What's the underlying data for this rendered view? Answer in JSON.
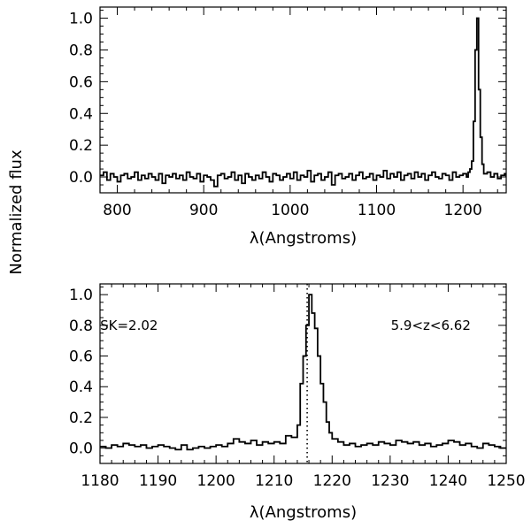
{
  "figure": {
    "ylabel": "Normalized flux"
  },
  "chart_data": [
    {
      "type": "line",
      "step": true,
      "xlabel": "λ(Angstroms)",
      "ylabel": "Normalized flux",
      "xlim": [
        780,
        1250
      ],
      "ylim": [
        -0.1,
        1.07
      ],
      "xticks": [
        800,
        900,
        1000,
        1100,
        1200
      ],
      "yticks": [
        0.0,
        0.2,
        0.4,
        0.6,
        0.8,
        1.0
      ],
      "ytick_labels": [
        "0.0",
        "0.2",
        "0.4",
        "0.6",
        "0.8",
        "1.0"
      ],
      "series": [
        {
          "x": [
            780,
            784,
            788,
            792,
            796,
            800,
            804,
            808,
            812,
            816,
            820,
            824,
            828,
            832,
            836,
            840,
            844,
            848,
            852,
            856,
            860,
            864,
            868,
            872,
            876,
            880,
            884,
            888,
            892,
            896,
            900,
            904,
            908,
            912,
            916,
            920,
            924,
            928,
            932,
            936,
            940,
            944,
            948,
            952,
            956,
            960,
            964,
            968,
            972,
            976,
            980,
            984,
            988,
            992,
            996,
            1000,
            1004,
            1008,
            1012,
            1016,
            1020,
            1024,
            1028,
            1032,
            1036,
            1040,
            1044,
            1048,
            1052,
            1056,
            1060,
            1064,
            1068,
            1072,
            1076,
            1080,
            1084,
            1088,
            1092,
            1096,
            1100,
            1104,
            1108,
            1112,
            1116,
            1120,
            1124,
            1128,
            1132,
            1136,
            1140,
            1144,
            1148,
            1152,
            1156,
            1160,
            1164,
            1168,
            1172,
            1176,
            1180,
            1184,
            1188,
            1192,
            1196,
            1200,
            1204,
            1206,
            1208,
            1210,
            1212,
            1214,
            1216,
            1218,
            1220,
            1222,
            1224,
            1228,
            1232,
            1236,
            1240,
            1244,
            1248,
            1250
          ],
          "y": [
            0.01,
            0.03,
            -0.02,
            0.02,
            0.0,
            -0.03,
            0.01,
            0.02,
            -0.01,
            0.0,
            0.03,
            -0.02,
            0.01,
            -0.01,
            0.02,
            0.0,
            -0.02,
            0.02,
            -0.04,
            0.01,
            0.0,
            0.02,
            -0.01,
            0.01,
            -0.02,
            0.03,
            0.0,
            -0.01,
            0.02,
            -0.03,
            0.01,
            0.0,
            -0.02,
            -0.06,
            0.01,
            0.02,
            -0.01,
            0.0,
            0.03,
            -0.02,
            0.01,
            -0.04,
            0.02,
            0.0,
            -0.02,
            0.01,
            -0.01,
            0.03,
            0.0,
            -0.03,
            0.02,
            0.01,
            -0.02,
            0.0,
            0.02,
            -0.01,
            0.03,
            -0.02,
            0.01,
            0.0,
            0.04,
            -0.03,
            0.01,
            0.02,
            -0.02,
            0.0,
            0.03,
            -0.05,
            0.01,
            0.02,
            -0.01,
            0.0,
            0.02,
            -0.02,
            0.01,
            0.03,
            -0.01,
            0.0,
            0.02,
            -0.02,
            0.01,
            0.0,
            0.04,
            -0.01,
            0.02,
            0.0,
            0.03,
            -0.02,
            0.01,
            0.02,
            -0.01,
            0.03,
            0.0,
            0.02,
            -0.02,
            0.01,
            0.03,
            0.0,
            -0.01,
            0.02,
            0.01,
            -0.02,
            0.03,
            0.0,
            0.01,
            0.02,
            0.0,
            0.03,
            0.05,
            0.1,
            0.35,
            0.8,
            1.0,
            0.55,
            0.25,
            0.08,
            0.02,
            0.03,
            0.0,
            0.02,
            -0.01,
            0.01,
            0.02,
            0.0
          ]
        }
      ]
    },
    {
      "type": "line",
      "step": true,
      "xlabel": "λ(Angstroms)",
      "ylabel": "Normalized flux",
      "xlim": [
        1180,
        1250
      ],
      "ylim": [
        -0.1,
        1.07
      ],
      "xticks": [
        1180,
        1190,
        1200,
        1210,
        1220,
        1230,
        1240,
        1250
      ],
      "yticks": [
        0.0,
        0.2,
        0.4,
        0.6,
        0.8,
        1.0
      ],
      "ytick_labels": [
        "0.0",
        "0.2",
        "0.4",
        "0.6",
        "0.8",
        "1.0"
      ],
      "vline": 1215.7,
      "annotations": [
        {
          "text": "SK=2.02",
          "x": 1185,
          "y": 0.8
        },
        {
          "text": "5.9<z<6.62",
          "x": 1237,
          "y": 0.8
        }
      ],
      "series": [
        {
          "x": [
            1180,
            1181,
            1182,
            1183,
            1184,
            1185,
            1186,
            1187,
            1188,
            1189,
            1190,
            1191,
            1192,
            1193,
            1194,
            1195,
            1196,
            1197,
            1198,
            1199,
            1200,
            1201,
            1202,
            1203,
            1204,
            1205,
            1206,
            1207,
            1208,
            1209,
            1210,
            1211,
            1212,
            1213,
            1214,
            1214.5,
            1215,
            1215.5,
            1216,
            1216.5,
            1217,
            1217.5,
            1218,
            1218.5,
            1219,
            1219.5,
            1220,
            1221,
            1222,
            1223,
            1224,
            1225,
            1226,
            1227,
            1228,
            1229,
            1230,
            1231,
            1232,
            1233,
            1234,
            1235,
            1236,
            1237,
            1238,
            1239,
            1240,
            1241,
            1242,
            1243,
            1244,
            1245,
            1246,
            1247,
            1248,
            1249,
            1250
          ],
          "y": [
            0.01,
            0.0,
            0.02,
            0.01,
            0.03,
            0.02,
            0.01,
            0.02,
            0.0,
            0.01,
            0.02,
            0.01,
            0.0,
            -0.01,
            0.02,
            -0.01,
            0.0,
            0.01,
            0.0,
            0.01,
            0.02,
            0.01,
            0.03,
            0.06,
            0.04,
            0.03,
            0.05,
            0.02,
            0.04,
            0.03,
            0.04,
            0.03,
            0.08,
            0.07,
            0.15,
            0.42,
            0.6,
            0.8,
            1.0,
            0.88,
            0.78,
            0.6,
            0.42,
            0.3,
            0.17,
            0.1,
            0.06,
            0.04,
            0.02,
            0.03,
            0.01,
            0.02,
            0.03,
            0.02,
            0.04,
            0.03,
            0.02,
            0.05,
            0.04,
            0.03,
            0.04,
            0.02,
            0.03,
            0.01,
            0.02,
            0.03,
            0.05,
            0.04,
            0.02,
            0.03,
            0.01,
            0.0,
            0.03,
            0.02,
            0.01,
            0.0,
            0.0
          ]
        }
      ]
    }
  ]
}
